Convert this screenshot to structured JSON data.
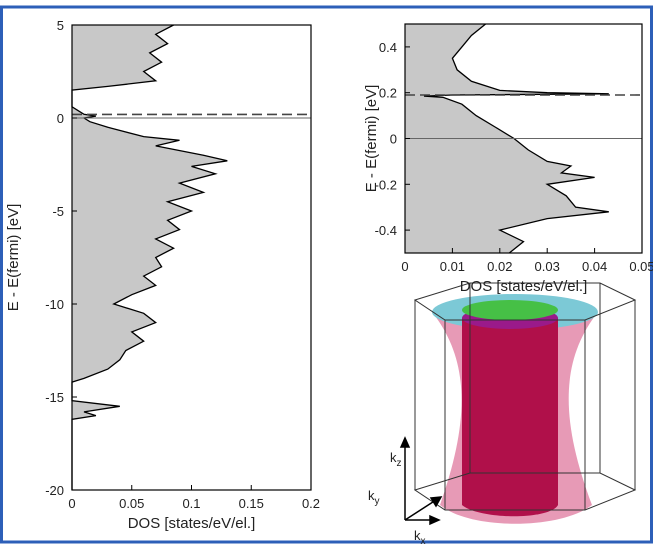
{
  "chart_data": [
    {
      "type": "area",
      "orientation": "horizontal",
      "xlabel": "DOS [states/eV/el.]",
      "ylabel": "E - E(fermi) [eV]",
      "xlim": [
        0,
        0.2
      ],
      "ylim": [
        -20,
        5
      ],
      "xticks": [
        0,
        0.05,
        0.1,
        0.15,
        0.2
      ],
      "yticks": [
        5,
        0,
        -5,
        -10,
        -15,
        -20
      ],
      "color": "#c8c8c8",
      "reference_lines": [
        {
          "value": 0,
          "style": "solid"
        },
        {
          "value": 0.19,
          "style": "dashed"
        }
      ],
      "y": [
        5,
        4.5,
        4,
        3.5,
        3,
        2.5,
        2,
        1.7,
        1.5,
        0.6,
        0.4,
        0.2,
        0.1,
        0,
        -0.2,
        -0.5,
        -1,
        -1.2,
        -1.5,
        -2,
        -2.3,
        -2.6,
        -3,
        -3.5,
        -4,
        -4.5,
        -5,
        -5.5,
        -6,
        -6.5,
        -7,
        -7.5,
        -8,
        -8.5,
        -9,
        -9.5,
        -10,
        -10.5,
        -11,
        -11.5,
        -12,
        -12.5,
        -13,
        -13.5,
        -14,
        -14.2,
        -15.2,
        -15.5,
        -15.8,
        -16,
        -16.2,
        -20
      ],
      "x": [
        0.085,
        0.07,
        0.08,
        0.065,
        0.075,
        0.06,
        0.07,
        0.03,
        0,
        0,
        0.005,
        0.01,
        0.02,
        0.01,
        0.015,
        0.03,
        0.06,
        0.09,
        0.07,
        0.11,
        0.13,
        0.1,
        0.12,
        0.09,
        0.11,
        0.08,
        0.1,
        0.08,
        0.09,
        0.07,
        0.085,
        0.07,
        0.075,
        0.06,
        0.07,
        0.05,
        0.035,
        0.06,
        0.07,
        0.05,
        0.06,
        0.045,
        0.04,
        0.03,
        0.01,
        0,
        0,
        0.04,
        0.01,
        0.02,
        0,
        0
      ]
    },
    {
      "type": "area",
      "orientation": "horizontal",
      "xlabel": "DOS [states/eV/el.]",
      "ylabel": "E - E(fermi) [eV]",
      "xlim": [
        0,
        0.05
      ],
      "ylim": [
        -0.5,
        0.5
      ],
      "xticks": [
        0,
        0.01,
        0.02,
        0.03,
        0.04,
        0.05
      ],
      "yticks": [
        0.4,
        0.2,
        0,
        -0.2,
        -0.4
      ],
      "color": "#c8c8c8",
      "reference_lines": [
        {
          "value": 0,
          "style": "solid"
        },
        {
          "value": 0.19,
          "style": "dashed"
        }
      ],
      "y": [
        0.5,
        0.45,
        0.4,
        0.35,
        0.3,
        0.25,
        0.21,
        0.2,
        0.195,
        0.19,
        0.185,
        0.18,
        0.15,
        0.1,
        0.05,
        0,
        -0.05,
        -0.1,
        -0.12,
        -0.15,
        -0.17,
        -0.2,
        -0.25,
        -0.3,
        -0.32,
        -0.35,
        -0.4,
        -0.45,
        -0.5
      ],
      "x": [
        0.017,
        0.014,
        0.012,
        0.01,
        0.011,
        0.014,
        0.02,
        0.03,
        0.043,
        0.01,
        0.004,
        0.008,
        0.012,
        0.015,
        0.019,
        0.023,
        0.026,
        0.03,
        0.035,
        0.033,
        0.04,
        0.03,
        0.034,
        0.036,
        0.043,
        0.03,
        0.02,
        0.025,
        0.022
      ]
    }
  ],
  "fermi_surface": {
    "axis_labels": [
      {
        "main": "k",
        "sub": "z"
      },
      {
        "main": "k",
        "sub": "y"
      },
      {
        "main": "k",
        "sub": "x"
      }
    ]
  }
}
